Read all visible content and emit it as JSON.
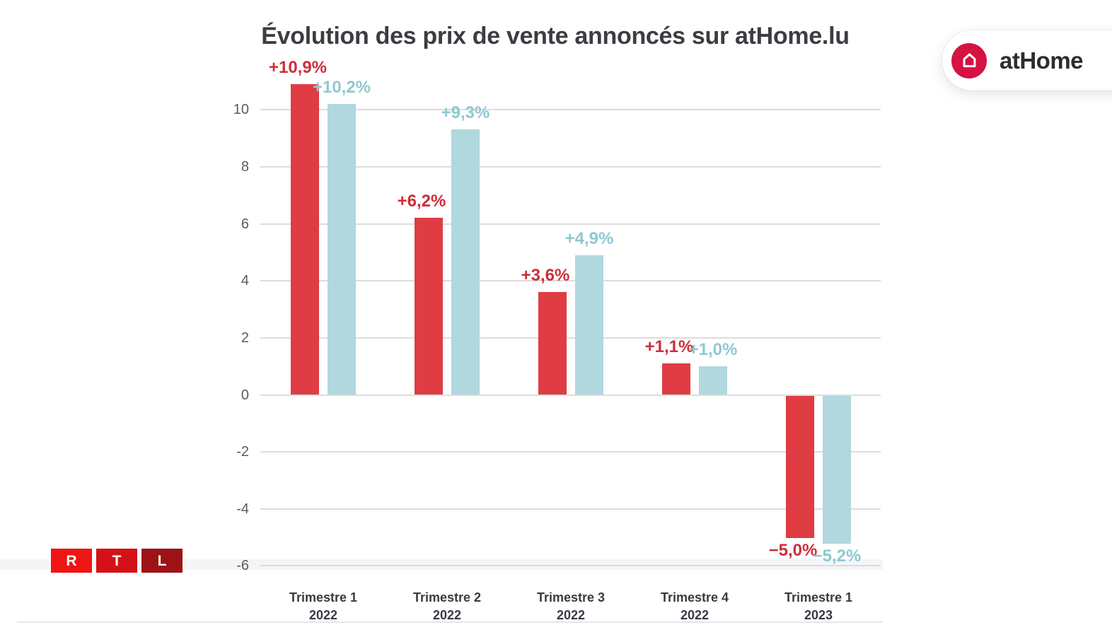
{
  "title": "Évolution des prix de vente annoncés sur atHome.lu",
  "chart_data": {
    "type": "bar",
    "title": "Évolution des prix de vente annoncés sur atHome.lu",
    "categories": [
      [
        "Trimestre 1",
        "2022"
      ],
      [
        "Trimestre 2",
        "2022"
      ],
      [
        "Trimestre 3",
        "2022"
      ],
      [
        "Trimestre 4",
        "2022"
      ],
      [
        "Trimestre 1",
        "2023"
      ]
    ],
    "series": [
      {
        "name": "rouge",
        "color": "#df3c44",
        "label_color": "#ce2e38",
        "values": [
          10.9,
          6.2,
          3.6,
          1.1,
          -5.0
        ],
        "labels": [
          "+10,9%",
          "+6,2%",
          "+3,6%",
          "+1,1%",
          "−5,0%"
        ]
      },
      {
        "name": "bleu",
        "color": "#b0d8de",
        "label_color": "#8ec9d3",
        "values": [
          10.2,
          9.3,
          4.9,
          1.0,
          -5.2
        ],
        "labels": [
          "+10,2%",
          "+9,3%",
          "+4,9%",
          "+1,0%",
          "−5,2%"
        ]
      }
    ],
    "y_ticks": [
      10,
      8,
      6,
      4,
      2,
      0,
      -2,
      -4,
      -6
    ],
    "ylim": [
      -6.5,
      11.5
    ],
    "xlabel": "",
    "ylabel": "",
    "grid": true,
    "legend_position": "none",
    "gridline_color": "#dcdcdc",
    "tick_color": "#5b5b61"
  },
  "logos": {
    "athome": {
      "label": "atHome",
      "icon": "house-icon",
      "circle_color": "#d61243"
    },
    "rtl": {
      "letters": [
        "R",
        "T",
        "L"
      ],
      "colors": [
        "#ef1515",
        "#d41116",
        "#9d1217"
      ]
    }
  }
}
